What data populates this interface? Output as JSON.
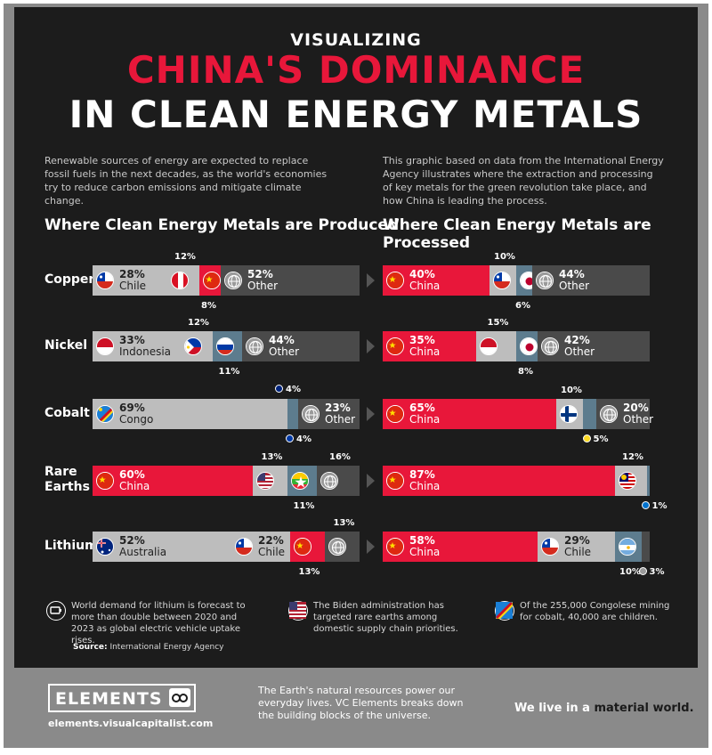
{
  "header": {
    "kicker": "VISUALIZING",
    "title_red": "CHINA'S DOMINANCE",
    "title_white": "IN CLEAN ENERGY METALS"
  },
  "intro": {
    "left": "Renewable sources of energy are expected to replace fossil fuels in the next decades, as the world's economies try to reduce carbon emissions and mitigate climate change.",
    "right": "This graphic based on data from the International Energy Agency illustrates where the extraction and processing of key metals for the green revolution take place, and how China is leading the process."
  },
  "colors": {
    "china": "#e8173a",
    "gray": "#bdbdbd",
    "other": "#4a4a4a",
    "steel": "#5d7c8e",
    "background": "#1c1c1c"
  },
  "chart_data": [
    {
      "type": "bar",
      "title": "Where Clean Energy Metals are Produced",
      "categories": [
        "Copper",
        "Nickel",
        "Cobalt",
        "Rare Earths",
        "Lithium"
      ],
      "rows": [
        {
          "metal": "Copper",
          "segments": [
            {
              "country": "Chile",
              "value": 28,
              "label": "28%",
              "name": "Chile",
              "flag": "chile"
            },
            {
              "country": "Peru",
              "value": 12,
              "label": "12%",
              "flag": "peru"
            },
            {
              "country": "China",
              "value": 8,
              "label": "8%",
              "flag": "china"
            },
            {
              "country": "Other",
              "value": 52,
              "label": "52%",
              "name": "Other",
              "flag": "globe"
            }
          ]
        },
        {
          "metal": "Nickel",
          "segments": [
            {
              "country": "Indonesia",
              "value": 33,
              "label": "33%",
              "name": "Indonesia",
              "flag": "indonesia"
            },
            {
              "country": "Philippines",
              "value": 12,
              "label": "12%",
              "flag": "philippines"
            },
            {
              "country": "Russia",
              "value": 11,
              "label": "11%",
              "flag": "russia"
            },
            {
              "country": "Other",
              "value": 44,
              "label": "44%",
              "name": "Other",
              "flag": "globe"
            }
          ]
        },
        {
          "metal": "Cobalt",
          "segments": [
            {
              "country": "Congo",
              "value": 69,
              "label": "69%",
              "name": "Congo",
              "flag": "congo"
            },
            {
              "country": "Australia",
              "value": 4,
              "label": "4%",
              "flag": "australia"
            },
            {
              "country": "Russia",
              "value": 4,
              "label": "4%",
              "flag": "russia"
            },
            {
              "country": "Other",
              "value": 23,
              "label": "23%",
              "name": "Other",
              "flag": "globe"
            }
          ]
        },
        {
          "metal": "Rare Earths",
          "segments": [
            {
              "country": "China",
              "value": 60,
              "label": "60%",
              "name": "China",
              "flag": "china"
            },
            {
              "country": "USA",
              "value": 13,
              "label": "13%",
              "flag": "usa"
            },
            {
              "country": "Myanmar",
              "value": 11,
              "label": "11%",
              "flag": "myanmar"
            },
            {
              "country": "Other",
              "value": 16,
              "label": "16%",
              "flag": "globe"
            }
          ]
        },
        {
          "metal": "Lithium",
          "segments": [
            {
              "country": "Australia",
              "value": 52,
              "label": "52%",
              "name": "Australia",
              "flag": "australia"
            },
            {
              "country": "Chile",
              "value": 22,
              "label": "22%",
              "name": "Chile",
              "flag": "chile"
            },
            {
              "country": "China",
              "value": 13,
              "label": "13%",
              "flag": "china"
            },
            {
              "country": "Other",
              "value": 13,
              "label": "13%",
              "flag": "globe"
            }
          ]
        }
      ]
    },
    {
      "type": "bar",
      "title": "Where Clean Energy Metals are Processed",
      "categories": [
        "Copper",
        "Nickel",
        "Cobalt",
        "Rare Earths",
        "Lithium"
      ],
      "rows": [
        {
          "metal": "Copper",
          "segments": [
            {
              "country": "China",
              "value": 40,
              "label": "40%",
              "name": "China",
              "flag": "china"
            },
            {
              "country": "Chile",
              "value": 10,
              "label": "10%",
              "flag": "chile"
            },
            {
              "country": "Japan",
              "value": 6,
              "label": "6%",
              "flag": "japan"
            },
            {
              "country": "Other",
              "value": 44,
              "label": "44%",
              "name": "Other",
              "flag": "globe"
            }
          ]
        },
        {
          "metal": "Nickel",
          "segments": [
            {
              "country": "China",
              "value": 35,
              "label": "35%",
              "name": "China",
              "flag": "china"
            },
            {
              "country": "Indonesia",
              "value": 15,
              "label": "15%",
              "flag": "indonesia"
            },
            {
              "country": "Japan",
              "value": 8,
              "label": "8%",
              "flag": "japan"
            },
            {
              "country": "Other",
              "value": 42,
              "label": "42%",
              "name": "Other",
              "flag": "globe"
            }
          ]
        },
        {
          "metal": "Cobalt",
          "segments": [
            {
              "country": "China",
              "value": 65,
              "label": "65%",
              "name": "China",
              "flag": "china"
            },
            {
              "country": "Finland",
              "value": 10,
              "label": "10%",
              "flag": "finland"
            },
            {
              "country": "Belgium",
              "value": 5,
              "label": "5%",
              "flag": "belgium"
            },
            {
              "country": "Other",
              "value": 20,
              "label": "20%",
              "name": "Other",
              "flag": "globe"
            }
          ]
        },
        {
          "metal": "Rare Earths",
          "segments": [
            {
              "country": "China",
              "value": 87,
              "label": "87%",
              "name": "China",
              "flag": "china"
            },
            {
              "country": "Malaysia",
              "value": 12,
              "label": "12%",
              "flag": "malaysia"
            },
            {
              "country": "Estonia",
              "value": 1,
              "label": "1%",
              "flag": "estonia"
            }
          ]
        },
        {
          "metal": "Lithium",
          "segments": [
            {
              "country": "China",
              "value": 58,
              "label": "58%",
              "name": "China",
              "flag": "china"
            },
            {
              "country": "Chile",
              "value": 29,
              "label": "29%",
              "name": "Chile",
              "flag": "chile"
            },
            {
              "country": "Argentina",
              "value": 10,
              "label": "10%",
              "flag": "argentina"
            },
            {
              "country": "Other",
              "value": 3,
              "label": "3%",
              "flag": "globe"
            }
          ]
        }
      ]
    }
  ],
  "notes": [
    {
      "icon": "lithium-battery-icon",
      "text": "World demand for lithium is forecast to more than double between 2020 and 2023 as global electric vehicle uptake rises."
    },
    {
      "icon": "usa-flag-icon",
      "text": "The Biden administration has targeted rare earths among domestic supply chain priorities."
    },
    {
      "icon": "congo-flag-icon",
      "text": "Of the 255,000 Congolese mining for cobalt, 40,000 are children."
    }
  ],
  "source": {
    "label": "Source:",
    "text": "International Energy Agency"
  },
  "footer": {
    "logo": "ELEMENTS",
    "url": "elements.visualcapitalist.com",
    "blurb": "The Earth's natural resources power our everyday lives. VC Elements breaks down the building blocks of the universe.",
    "tagline_a": "We live in a ",
    "tagline_b": "material world."
  }
}
